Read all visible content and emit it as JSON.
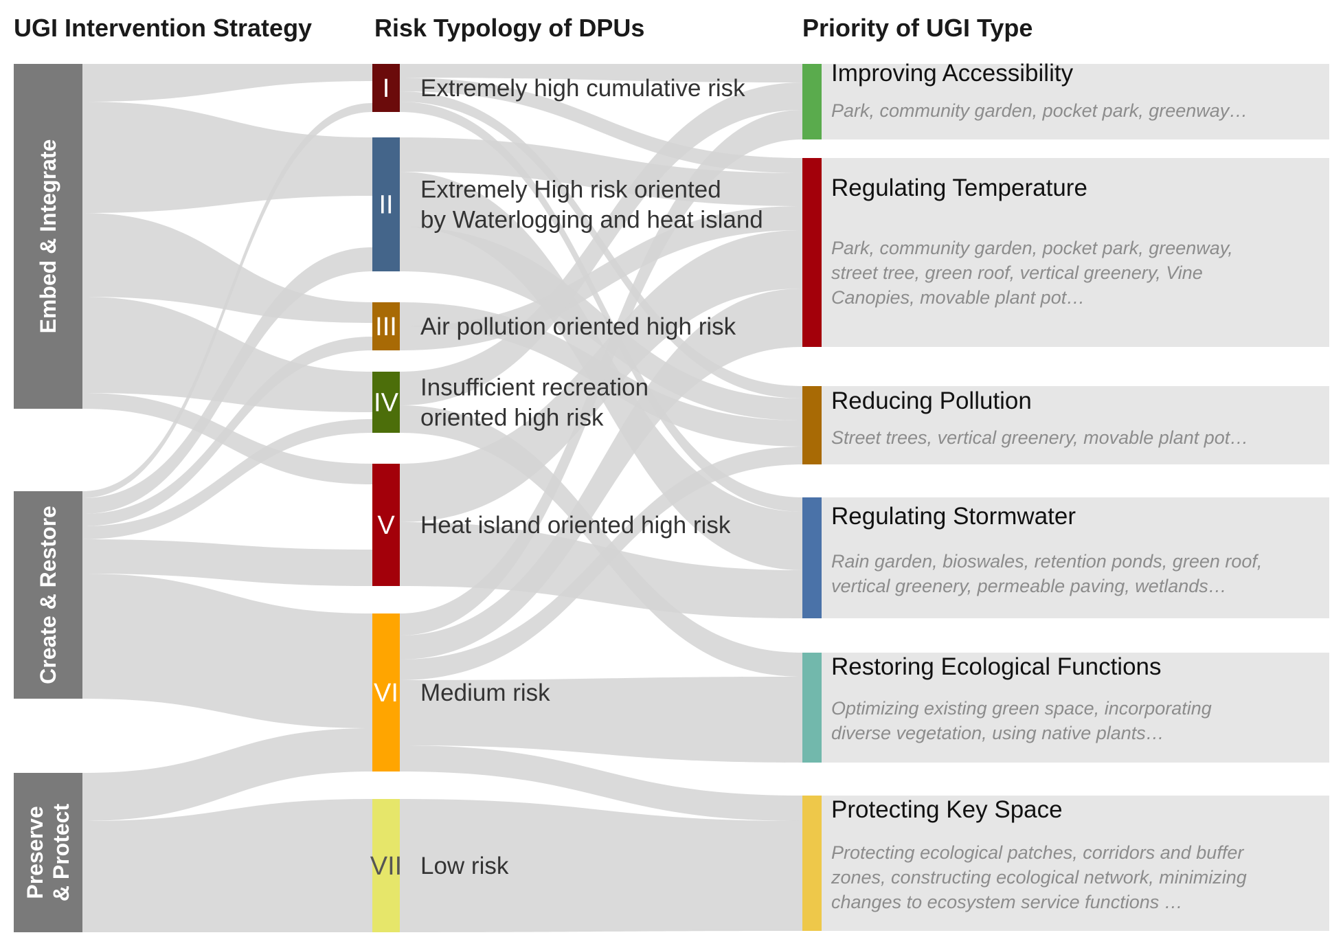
{
  "headers": {
    "strategy": "UGI Intervention Strategy",
    "risk": "Risk Typology of DPUs",
    "priority": "Priority of UGI Type"
  },
  "strategies": [
    {
      "id": "embed",
      "lines": [
        "Embed & Integrate"
      ],
      "color": "#7a7a7a"
    },
    {
      "id": "create",
      "lines": [
        "Create & Restore"
      ],
      "color": "#7a7a7a"
    },
    {
      "id": "preserve",
      "lines": [
        "Preserve",
        "& Protect"
      ],
      "color": "#7a7a7a"
    }
  ],
  "risks": [
    {
      "id": "I",
      "numeral": "I",
      "lines": [
        "Extremely high cumulative risk"
      ],
      "color": "#6b0b0b",
      "numeral_color": "#ffffff"
    },
    {
      "id": "II",
      "numeral": "II",
      "lines": [
        "Extremely High risk oriented",
        "by Waterlogging and heat island"
      ],
      "color": "#44658a",
      "numeral_color": "#ffffff"
    },
    {
      "id": "III",
      "numeral": "III",
      "lines": [
        "Air pollution oriented high risk"
      ],
      "color": "#a86a05",
      "numeral_color": "#ffffff"
    },
    {
      "id": "IV",
      "numeral": "IV",
      "lines": [
        "Insufficient recreation",
        "oriented high risk"
      ],
      "color": "#4c6e0a",
      "numeral_color": "#ffffff"
    },
    {
      "id": "V",
      "numeral": "V",
      "lines": [
        "Heat island oriented high risk"
      ],
      "color": "#a3000a",
      "numeral_color": "#ffffff"
    },
    {
      "id": "VI",
      "numeral": "VI",
      "lines": [
        "Medium risk"
      ],
      "color": "#ffa500",
      "numeral_color": "#ffffff"
    },
    {
      "id": "VII",
      "numeral": "VII",
      "lines": [
        "Low risk"
      ],
      "color": "#e6e66a",
      "numeral_color": "#555555"
    }
  ],
  "priorities": [
    {
      "id": "access",
      "title": "Improving Accessibility",
      "color": "#5aab4d",
      "desc": [
        "Park, community garden, pocket park, greenway…"
      ]
    },
    {
      "id": "temp",
      "title": "Regulating Temperature",
      "color": "#a3000a",
      "desc": [
        "Park, community garden, pocket park, greenway,",
        "street tree, green roof, vertical greenery, Vine",
        "Canopies, movable plant pot…"
      ]
    },
    {
      "id": "pollution",
      "title": "Reducing Pollution",
      "color": "#a86a05",
      "desc": [
        "Street trees, vertical greenery, movable plant pot…"
      ]
    },
    {
      "id": "storm",
      "title": "Regulating Stormwater",
      "color": "#4a72a8",
      "desc": [
        "Rain garden, bioswales, retention ponds, green roof,",
        "vertical greenery, permeable paving, wetlands…"
      ]
    },
    {
      "id": "eco",
      "title": "Restoring Ecological Functions",
      "color": "#72b8ac",
      "desc": [
        "Optimizing existing green space, incorporating",
        "diverse vegetation, using native plants…"
      ]
    },
    {
      "id": "key",
      "title": "Protecting Key Space",
      "color": "#eec84a",
      "desc": [
        "Protecting ecological patches, corridors and buffer",
        "zones, constructing ecological network, minimizing",
        "changes to ecosystem service functions …"
      ]
    }
  ],
  "flow_color": "#d3d3d3",
  "panel_color": "#e6e6e6"
}
